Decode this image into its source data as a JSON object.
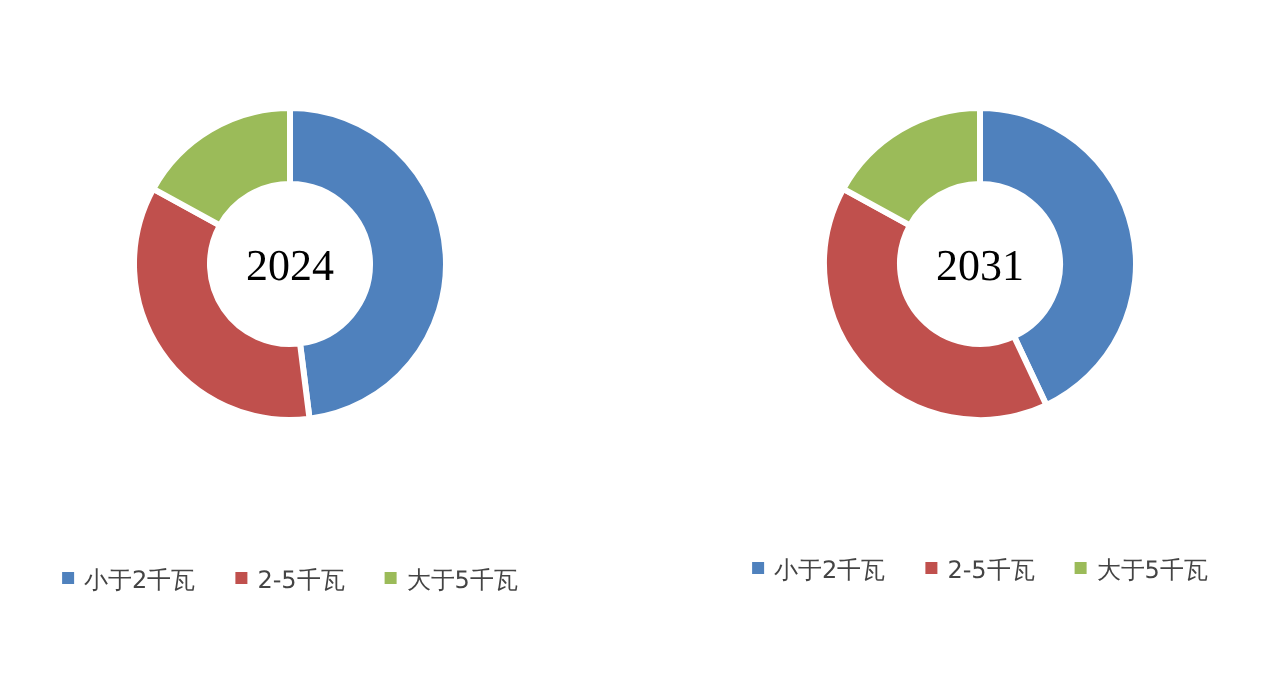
{
  "chart_data": [
    {
      "type": "donut",
      "title": "2024",
      "categories": [
        "小于2千瓦",
        "2-5千瓦",
        "大于5千瓦"
      ],
      "values": [
        48,
        35,
        17
      ],
      "colors": [
        "#4f81bd",
        "#c0504d",
        "#9bbb59"
      ],
      "legend": "bottom"
    },
    {
      "type": "donut",
      "title": "2031",
      "categories": [
        "小于2千瓦",
        "2-5千瓦",
        "大于5千瓦"
      ],
      "values": [
        43,
        40,
        17
      ],
      "colors": [
        "#4f81bd",
        "#c0504d",
        "#9bbb59"
      ],
      "legend": "bottom"
    }
  ]
}
